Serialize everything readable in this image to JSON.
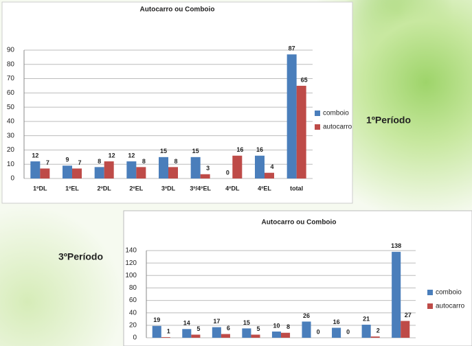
{
  "chart_data": [
    {
      "type": "bar",
      "title": "Autocarro ou Comboio",
      "annotation": "1ºPeríodo",
      "categories": [
        "1ºDL",
        "1ºEL",
        "2ºDL",
        "2ºEL",
        "3ºDL",
        "3º/4ºEL",
        "4ºDL",
        "4ºEL",
        "total"
      ],
      "series": [
        {
          "name": "comboio",
          "color": "#4a7ebb",
          "values": [
            12,
            9,
            8,
            12,
            15,
            15,
            0,
            16,
            87
          ]
        },
        {
          "name": "autocarro",
          "color": "#be4b48",
          "values": [
            7,
            7,
            12,
            8,
            8,
            3,
            16,
            4,
            65
          ]
        }
      ],
      "ylim": [
        0,
        90
      ],
      "yticks": [
        0,
        10,
        20,
        30,
        40,
        50,
        60,
        70,
        80,
        90
      ],
      "grid": true,
      "legend": "right"
    },
    {
      "type": "bar",
      "title": "Autocarro ou Comboio",
      "annotation": "3ºPeríodo",
      "categories": [
        null,
        null,
        null,
        null,
        null,
        null,
        null,
        null,
        null
      ],
      "series": [
        {
          "name": "comboio",
          "color": "#4a7ebb",
          "values": [
            19,
            14,
            17,
            15,
            10,
            26,
            16,
            21,
            138
          ]
        },
        {
          "name": "autocarro",
          "color": "#be4b48",
          "values": [
            1,
            5,
            6,
            5,
            8,
            0,
            0,
            2,
            27
          ]
        }
      ],
      "ylim": [
        0,
        140
      ],
      "yticks": [
        0,
        20,
        40,
        60,
        80,
        100,
        120,
        140
      ],
      "grid": true,
      "legend": "right"
    }
  ]
}
